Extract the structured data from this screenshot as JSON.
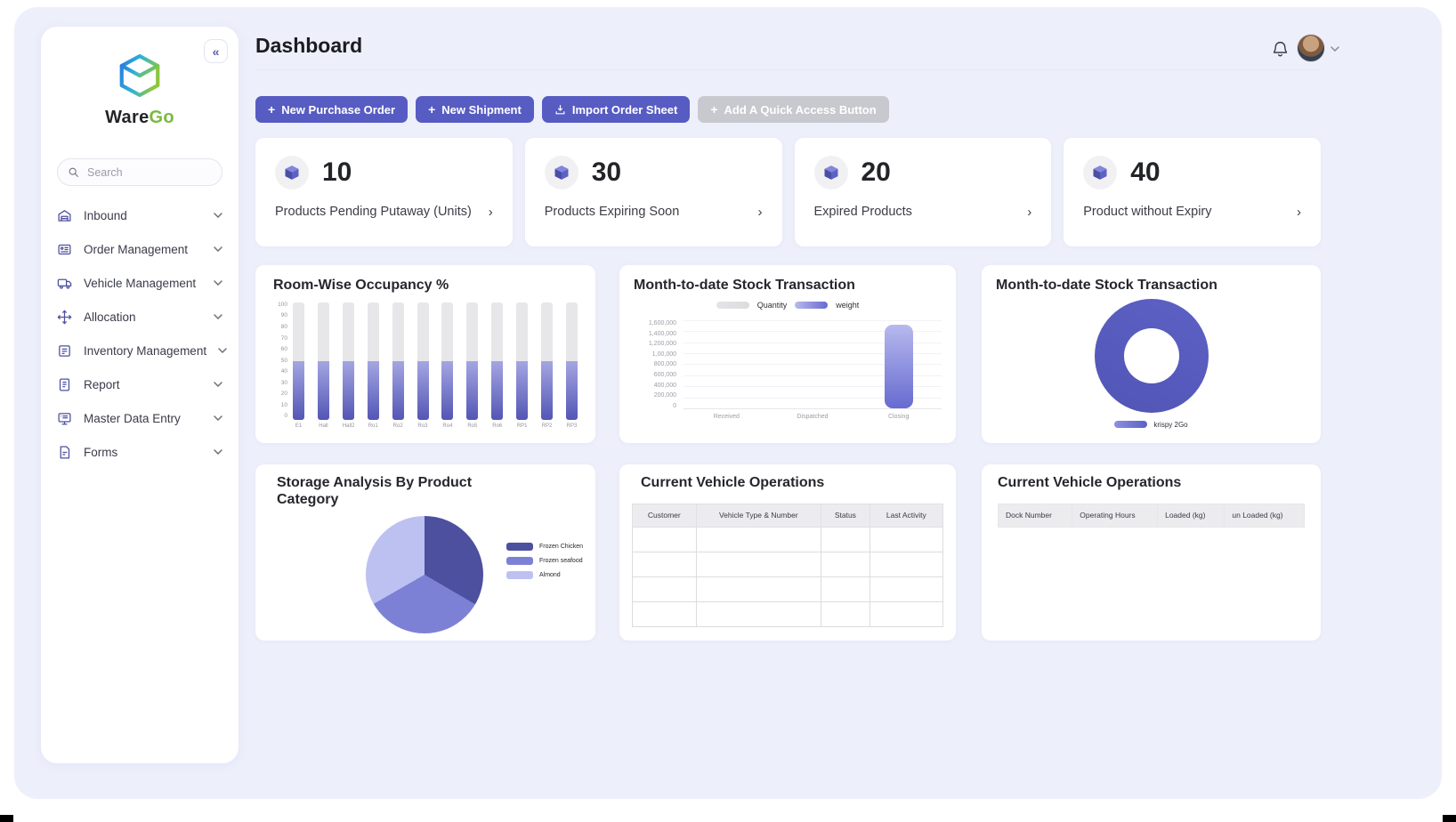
{
  "header": {
    "title": "Dashboard",
    "icons": [
      "bell-icon",
      "user-avatar",
      "chevron-down-icon"
    ]
  },
  "sidebar": {
    "brand": {
      "name_primary": "Ware",
      "name_accent": "Go",
      "logo_icon": "cube-logo-icon"
    },
    "collapse_glyph": "«",
    "search": {
      "placeholder": "Search",
      "icon": "search-icon"
    },
    "items": [
      {
        "label": "Inbound",
        "icon": "warehouse-icon"
      },
      {
        "label": "Order Management",
        "icon": "order-doc-icon"
      },
      {
        "label": "Vehicle Management",
        "icon": "truck-icon"
      },
      {
        "label": "Allocation",
        "icon": "move-icon"
      },
      {
        "label": "Inventory Management",
        "icon": "inventory-icon"
      },
      {
        "label": "Report",
        "icon": "report-icon"
      },
      {
        "label": "Master Data Entry",
        "icon": "monitor-icon"
      },
      {
        "label": "Forms",
        "icon": "form-icon"
      }
    ]
  },
  "quick_actions": {
    "buttons": [
      {
        "label": "New Purchase Order",
        "icon": "plus",
        "variant": "primary"
      },
      {
        "label": "New Shipment",
        "icon": "plus",
        "variant": "primary"
      },
      {
        "label": "Import Order Sheet",
        "icon": "download",
        "variant": "primary"
      },
      {
        "label": "Add A Quick Access Button",
        "icon": "plus",
        "variant": "disabled"
      }
    ]
  },
  "stats": {
    "cards": [
      {
        "value": "10",
        "label": "Products Pending Putaway (Units)",
        "icon": "package-icon"
      },
      {
        "value": "30",
        "label": "Products Expiring Soon",
        "icon": "package-icon"
      },
      {
        "value": "20",
        "label": "Expired Products",
        "icon": "package-icon"
      },
      {
        "value": "40",
        "label": "Product without Expiry",
        "icon": "package-icon"
      }
    ]
  },
  "chart_data": [
    {
      "type": "bar",
      "title": "Room-Wise Occupancy %",
      "categories": [
        "E1",
        "Hall",
        "Hall2",
        "Ro1",
        "Ro2",
        "Ro3",
        "Ro4",
        "Ro5",
        "Ro6",
        "RP1",
        "RP2",
        "RP3"
      ],
      "values": [
        50,
        50,
        50,
        50,
        50,
        50,
        50,
        50,
        50,
        50,
        50,
        50
      ],
      "ylim": [
        0,
        100
      ],
      "yticks": [
        "100",
        "90",
        "80",
        "70",
        "60",
        "50",
        "40",
        "30",
        "20",
        "10",
        "0"
      ],
      "fill_top": "#a4a6e2",
      "fill_bottom": "#5356b4",
      "track_color": "#e7e7ea",
      "legend_position": "none",
      "grid": false
    },
    {
      "type": "bar",
      "title": "Month-to-date Stock Transaction",
      "categories": [
        "Received",
        "Dispatched",
        "Closing"
      ],
      "series": [
        {
          "name": "Quantity",
          "color": "#dcdcdf",
          "color_top": "#e4e4e7",
          "values": [
            0,
            0,
            0
          ]
        },
        {
          "name": "weight",
          "color": "#676bd0",
          "color_top": "#b7b9ee",
          "values": [
            0,
            0,
            1500000
          ]
        }
      ],
      "ylim": [
        0,
        1600000
      ],
      "yticks": [
        "1,600,000",
        "1,400,000",
        "1,200,000",
        "1,00,000",
        "800,000",
        "600,000",
        "400,000",
        "200,000",
        "0"
      ],
      "legend_position": "top",
      "grid": true
    },
    {
      "type": "pie",
      "subtype": "donut",
      "title": "Month-to-date Stock Transaction",
      "slices": [
        {
          "label": "krispy 2Go",
          "value": 100,
          "color": "#5d61c4"
        }
      ],
      "legend_position": "bottom"
    },
    {
      "type": "pie",
      "title": "Storage Analysis By Product Category",
      "title_lines": [
        "Storage Analysis By Product",
        "Category"
      ],
      "slices": [
        {
          "label": "Frozen Chicken",
          "value": 33.4,
          "color": "#4d509e"
        },
        {
          "label": "Frozen seafood",
          "value": 33.3,
          "color": "#7d81d6"
        },
        {
          "label": "Almond",
          "value": 33.3,
          "color": "#bdc1f1"
        }
      ],
      "legend_position": "right"
    }
  ],
  "tables": [
    {
      "title": "Current Vehicle Operations",
      "columns": [
        "Customer",
        "Vehicle Type & Number",
        "Status",
        "Last Activity"
      ],
      "rows": [
        [
          "",
          "",
          "",
          ""
        ],
        [
          "",
          "",
          "",
          ""
        ],
        [
          "",
          "",
          "",
          ""
        ],
        [
          "",
          "",
          "",
          ""
        ]
      ]
    },
    {
      "title": "Current Vehicle Operations",
      "columns": [
        "Dock Number",
        "Operating Hours",
        "Loaded (kg)",
        "un Loaded (kg)"
      ],
      "rows": []
    }
  ],
  "colors": {
    "primary_button": "#575cc2",
    "disabled_button": "#c8c9cf",
    "brand_green": "#7ab93f",
    "app_background": "#edf0fb",
    "nav_icon": "#4d509e"
  }
}
